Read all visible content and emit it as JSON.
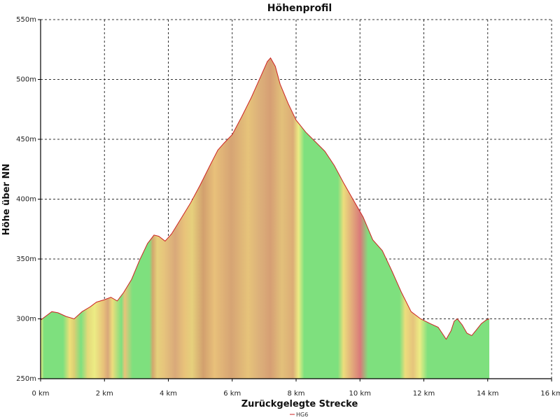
{
  "chart_data": {
    "type": "area",
    "title": "Höhenprofil",
    "xlabel": "Zurückgelegte Strecke",
    "ylabel": "Höhe über NN",
    "xlim": [
      0,
      16
    ],
    "ylim": [
      250,
      550
    ],
    "x_ticks": [
      0,
      2,
      4,
      6,
      8,
      10,
      12,
      14,
      16
    ],
    "x_tick_labels": [
      "0 km",
      "2 km",
      "4 km",
      "6 km",
      "8 km",
      "10 km",
      "12 km",
      "14 km",
      "16 km"
    ],
    "y_ticks": [
      250,
      300,
      350,
      400,
      450,
      500,
      550
    ],
    "y_tick_labels": [
      "250m",
      "300m",
      "350m",
      "400m",
      "450m",
      "500m",
      "550m"
    ],
    "grid": true,
    "legend_position": "bottom",
    "series": [
      {
        "name": "HG6",
        "color": "#cc2222",
        "x": [
          0,
          0.15,
          0.35,
          0.55,
          0.8,
          1.05,
          1.3,
          1.55,
          1.75,
          2.0,
          2.2,
          2.4,
          2.6,
          2.85,
          3.1,
          3.35,
          3.55,
          3.7,
          3.9,
          4.1,
          4.4,
          4.7,
          5.0,
          5.3,
          5.55,
          5.75,
          6.0,
          6.3,
          6.6,
          6.9,
          7.1,
          7.2,
          7.35,
          7.5,
          7.75,
          8.0,
          8.3,
          8.6,
          8.9,
          9.2,
          9.5,
          9.8,
          10.1,
          10.4,
          10.7,
          11.0,
          11.3,
          11.6,
          11.9,
          12.2,
          12.45,
          12.7,
          12.85,
          12.95,
          13.05,
          13.2,
          13.35,
          13.5,
          13.65,
          13.8,
          13.95,
          14.05
        ],
        "y": [
          299,
          302,
          306,
          305,
          302,
          300,
          306,
          310,
          314,
          316,
          318,
          315,
          322,
          333,
          349,
          363,
          370,
          369,
          365,
          371,
          384,
          397,
          412,
          428,
          441,
          447,
          454,
          469,
          485,
          503,
          515,
          518,
          511,
          496,
          480,
          466,
          456,
          448,
          440,
          428,
          413,
          399,
          385,
          366,
          357,
          340,
          322,
          306,
          300,
          296,
          293,
          283,
          290,
          298,
          300,
          295,
          288,
          286,
          291,
          296,
          299,
          300
        ]
      }
    ],
    "gradient_stops": [
      [
        0,
        "#ecec84"
      ],
      [
        0.03,
        "#7ee07e"
      ],
      [
        0.2,
        "#7ee07e"
      ],
      [
        0.26,
        "#eee078"
      ],
      [
        0.3,
        "#d9cf74"
      ],
      [
        0.36,
        "#7ee07e"
      ],
      [
        0.42,
        "#e3d97a"
      ],
      [
        0.48,
        "#ecec84"
      ],
      [
        0.56,
        "#e8c27a"
      ],
      [
        0.6,
        "#d9a77a"
      ],
      [
        0.64,
        "#ecdd7c"
      ],
      [
        0.72,
        "#7ee07e"
      ],
      [
        0.75,
        "#e8c47a"
      ],
      [
        0.82,
        "#7ee07e"
      ],
      [
        0.97,
        "#7ee07e"
      ],
      [
        1.0,
        "#d2a86e"
      ],
      [
        1.04,
        "#e6d07c"
      ],
      [
        1.1,
        "#e6c47c"
      ],
      [
        1.2,
        "#d9a97a"
      ],
      [
        1.28,
        "#e8c27a"
      ],
      [
        1.35,
        "#e6d07c"
      ],
      [
        1.45,
        "#d2a06e"
      ],
      [
        1.55,
        "#e8c07a"
      ],
      [
        1.7,
        "#d6a474"
      ],
      [
        1.85,
        "#e6c37a"
      ],
      [
        1.95,
        "#dcb07a"
      ],
      [
        2.05,
        "#d69f74"
      ],
      [
        2.15,
        "#e2c07a"
      ],
      [
        2.25,
        "#dcac76"
      ],
      [
        2.3,
        "#ecec84"
      ],
      [
        2.35,
        "#7ee07e"
      ],
      [
        2.65,
        "#7ee07e"
      ],
      [
        2.7,
        "#ecdd7c"
      ],
      [
        2.85,
        "#d97a7a"
      ],
      [
        2.92,
        "#7ee07e"
      ],
      [
        3.2,
        "#7ee07e"
      ],
      [
        3.25,
        "#ecdd7c"
      ],
      [
        3.32,
        "#e6c47c"
      ],
      [
        3.38,
        "#ecec84"
      ],
      [
        3.45,
        "#7ee07e"
      ],
      [
        4.0,
        "#7ee07e"
      ]
    ]
  },
  "legend": {
    "series_name": "HG6",
    "color": "#cc2222"
  }
}
